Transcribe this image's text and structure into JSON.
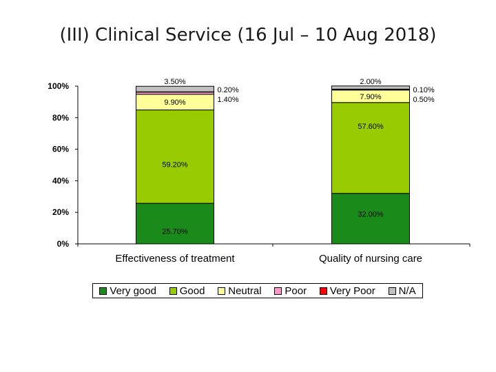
{
  "page": {
    "title": "(III) Clinical Service (16 Jul – 10 Aug 2018)"
  },
  "chart_data": {
    "type": "bar",
    "stacked": true,
    "title": "(III) Clinical Service (16 Jul – 10 Aug 2018)",
    "xlabel": "",
    "ylabel": "",
    "ylim": [
      0,
      100
    ],
    "y_ticks": [
      "0%",
      "20%",
      "40%",
      "60%",
      "80%",
      "100%"
    ],
    "categories": [
      "Effectiveness of treatment",
      "Quality of nursing care"
    ],
    "series": [
      {
        "name": "Very good",
        "color": "#1a8a1a",
        "values": [
          25.7,
          32.0
        ],
        "labels": [
          "25.70%",
          "32.00%"
        ]
      },
      {
        "name": "Good",
        "color": "#99cc00",
        "values": [
          59.2,
          57.6
        ],
        "labels": [
          "59.20%",
          "57.60%"
        ]
      },
      {
        "name": "Neutral",
        "color": "#ffff99",
        "values": [
          9.9,
          7.9
        ],
        "labels": [
          "9.90%",
          "7.90%"
        ]
      },
      {
        "name": "Poor",
        "color": "#ff99cc",
        "values": [
          1.4,
          0.5
        ],
        "labels": [
          "1.40%",
          "0.50%"
        ]
      },
      {
        "name": "Very Poor",
        "color": "#ff0000",
        "values": [
          0.2,
          0.1
        ],
        "labels": [
          "0.20%",
          "0.10%"
        ]
      },
      {
        "name": "N/A",
        "color": "#c0c0c0",
        "values": [
          3.5,
          2.0
        ],
        "labels": [
          "3.50%",
          "2.00%"
        ]
      }
    ],
    "legend": "bottom"
  }
}
